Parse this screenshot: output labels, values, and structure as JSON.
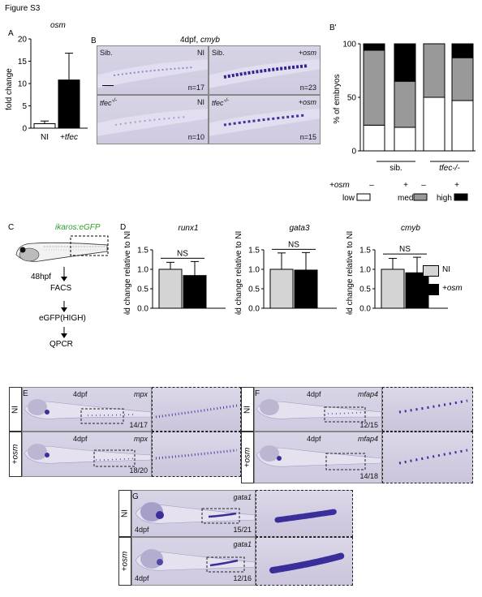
{
  "figure_title": "Figure S3",
  "panelA": {
    "letter": "A",
    "gene": "osm",
    "ylabel": "fold change",
    "yticks": [
      "0",
      "5",
      "10",
      "15",
      "20"
    ],
    "xlabels": [
      "NI",
      "+tfec"
    ]
  },
  "panelB": {
    "letter": "B",
    "header_stage": "4dpf,",
    "header_gene": "cmyb",
    "tiles": [
      {
        "left": "Sib.",
        "right": "NI",
        "count": "n=17"
      },
      {
        "left": "Sib.",
        "right": "+osm",
        "count": "n=23"
      },
      {
        "left": "tfec",
        "left_sup": "-/-",
        "right": "NI",
        "count": "n=10"
      },
      {
        "left": "tfec",
        "left_sup": "-/-",
        "right": "+osm",
        "count": "n=15"
      }
    ]
  },
  "panelBprime": {
    "letter": "B'",
    "ylabel": "% of embryos",
    "yticks": [
      "0",
      "50",
      "100"
    ],
    "group_labels": [
      "sib.",
      "tfec-/-"
    ],
    "osm_row_label": "+osm",
    "osm_signs": [
      "–",
      "+",
      "–",
      "+"
    ],
    "legend": [
      "low",
      "med",
      "high"
    ]
  },
  "panelC": {
    "letter": "C",
    "reporter": "ikaros:eGFP",
    "stage": "48hpf",
    "steps": [
      "FACS",
      "eGFP(HIGH)",
      "QPCR"
    ]
  },
  "panelD": {
    "letter": "D",
    "ylabel": "fold change relative to NI",
    "yticks": [
      "0.0",
      "0.5",
      "1.0",
      "1.5"
    ],
    "sig": "NS",
    "legend": [
      "NI",
      "+osm"
    ]
  },
  "panelE": {
    "letter": "E",
    "stage": "4dpf",
    "gene": "mpx",
    "rows": [
      "NI",
      "+osm"
    ],
    "counts": [
      "14/17",
      "18/20"
    ]
  },
  "panelF": {
    "letter": "F",
    "stage": "4dpf",
    "gene": "mfap4",
    "rows": [
      "NI",
      "+osm"
    ],
    "counts": [
      "12/15",
      "14/18"
    ]
  },
  "panelG": {
    "letter": "G",
    "stage": "4dpf",
    "gene": "gata1",
    "rows": [
      "NI",
      "+osm"
    ],
    "counts": [
      "15/21",
      "12/16"
    ]
  },
  "colors": {
    "ni_bar": "#d4d4d4",
    "osm_bar": "#000000",
    "reporter_green": "#2ea02e",
    "stain": "#3a2f9a"
  },
  "chart_data": [
    {
      "type": "bar",
      "title": "osm",
      "ylabel": "fold change",
      "categories": [
        "NI",
        "+tfec"
      ],
      "values": [
        1,
        10.8
      ],
      "errors": [
        0.6,
        6.0
      ],
      "ylim": [
        0,
        20
      ]
    },
    {
      "type": "bar",
      "stacked": true,
      "ylabel": "% of embryos",
      "categories": [
        "sib. –",
        "sib. +",
        "tfec-/- –",
        "tfec-/- +"
      ],
      "series": [
        {
          "name": "low",
          "values": [
            24,
            22,
            50,
            47
          ]
        },
        {
          "name": "med",
          "values": [
            70,
            43,
            50,
            40
          ]
        },
        {
          "name": "high",
          "values": [
            6,
            35,
            0,
            13
          ]
        }
      ],
      "ylim": [
        0,
        100
      ]
    },
    {
      "type": "bar",
      "title": "runx1",
      "ylabel": "fold change relative to NI",
      "categories": [
        "NI",
        "+osm"
      ],
      "values": [
        1.0,
        0.84
      ],
      "errors": [
        0.18,
        0.36
      ],
      "ylim": [
        0,
        1.5
      ]
    },
    {
      "type": "bar",
      "title": "gata3",
      "ylabel": "fold change relative to NI",
      "categories": [
        "NI",
        "+osm"
      ],
      "values": [
        1.0,
        0.98
      ],
      "errors": [
        0.42,
        0.45
      ],
      "ylim": [
        0,
        1.5
      ]
    },
    {
      "type": "bar",
      "title": "cmyb",
      "ylabel": "fold change relative to NI",
      "categories": [
        "NI",
        "+osm"
      ],
      "values": [
        1.0,
        0.91
      ],
      "errors": [
        0.28,
        0.4
      ],
      "ylim": [
        0,
        1.5
      ]
    }
  ]
}
